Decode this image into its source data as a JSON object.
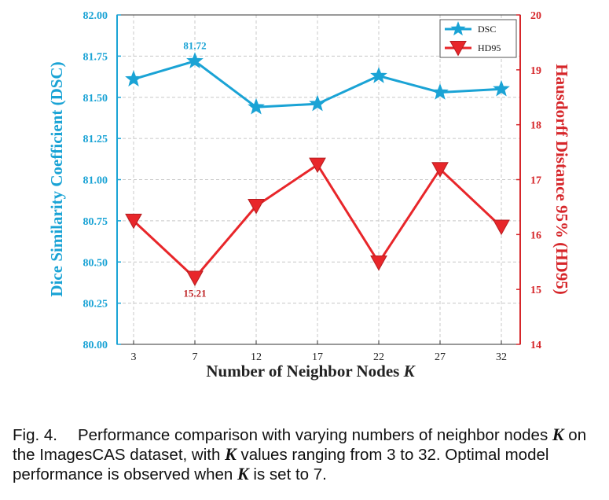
{
  "chart_data": {
    "type": "line",
    "x": [
      3,
      7,
      12,
      17,
      22,
      27,
      32
    ],
    "xlabel": "Number of Neighbor Nodes",
    "xlabel_var": "K",
    "series": [
      {
        "name": "DSC",
        "axis": "left",
        "color": "#1aa3d5",
        "marker": "star",
        "values": [
          81.61,
          81.72,
          81.44,
          81.46,
          81.63,
          81.53,
          81.55
        ]
      },
      {
        "name": "HD95",
        "axis": "right",
        "color": "#e8262a",
        "marker": "triangle-down",
        "values": [
          16.25,
          15.21,
          16.52,
          17.27,
          15.49,
          17.19,
          16.14
        ]
      }
    ],
    "ylabel_left": "Dice Similarity Coefficient (DSC)",
    "ylim_left": [
      80.0,
      82.0
    ],
    "yticks_left": [
      "80.00",
      "80.25",
      "80.50",
      "80.75",
      "81.00",
      "81.25",
      "81.50",
      "81.75",
      "82.00"
    ],
    "ylabel_right": "Hausdorff Distance 95% (HD95)",
    "ylim_right": [
      14,
      20
    ],
    "yticks_right": [
      "14",
      "15",
      "16",
      "17",
      "18",
      "19",
      "20"
    ],
    "annotations": [
      {
        "series": "DSC",
        "x": 7,
        "text": "81.72",
        "color": "#1aa3d5"
      },
      {
        "series": "HD95",
        "x": 7,
        "text": "15.21",
        "color": "#c0282a"
      }
    ],
    "grid": true,
    "legend": "top-right"
  },
  "caption": {
    "fig_no": "Fig. 4.",
    "var": "K",
    "p1": "Performance comparison with varying numbers of neighbor nodes",
    "p2": "on the ImagesCAS dataset, with",
    "p3": "values ranging from 3 to 32. Optimal model performance is observed when",
    "p4": "is set to 7."
  }
}
